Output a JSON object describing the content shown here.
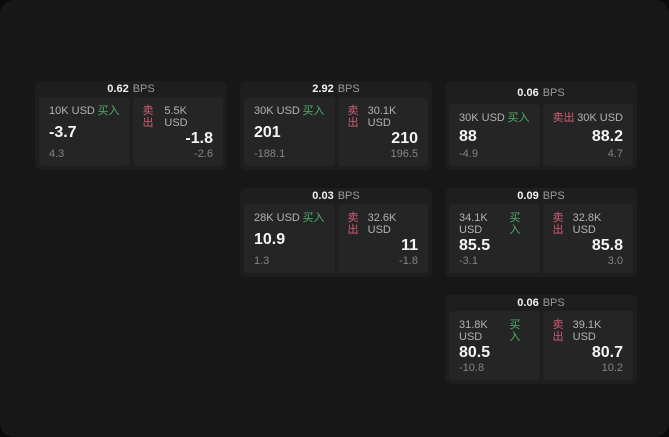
{
  "labels": {
    "bps": "BPS",
    "buy": "买入",
    "sell": "卖出"
  },
  "colors": {
    "buy-color": "#4db06a",
    "sell-color": "#cd5f73"
  },
  "cards": [
    {
      "bps": "0.62",
      "buy": {
        "amount": "10K USD",
        "value": "-3.7",
        "sub": "4.3"
      },
      "sell": {
        "amount": "5.5K USD",
        "value": "-1.8",
        "sub": "-2.6"
      }
    },
    {
      "bps": "2.92",
      "buy": {
        "amount": "30K USD",
        "value": "201",
        "sub": "-188.1"
      },
      "sell": {
        "amount": "30.1K USD",
        "value": "210",
        "sub": "196.5"
      }
    },
    {
      "bps": "0.06",
      "buy": {
        "amount": "30K USD",
        "value": "88",
        "sub": "-4.9"
      },
      "sell": {
        "amount": "30K USD",
        "value": "88.2",
        "sub": "4.7"
      }
    },
    {
      "bps": "0.03",
      "buy": {
        "amount": "28K USD",
        "value": "10.9",
        "sub": "1.3"
      },
      "sell": {
        "amount": "32.6K USD",
        "value": "11",
        "sub": "-1.8"
      }
    },
    {
      "bps": "0.09",
      "buy": {
        "amount": "34.1K USD",
        "value": "85.5",
        "sub": "-3.1"
      },
      "sell": {
        "amount": "32.8K USD",
        "value": "85.8",
        "sub": "3.0"
      }
    },
    {
      "bps": "0.06",
      "buy": {
        "amount": "31.8K USD",
        "value": "80.5",
        "sub": "-10.8"
      },
      "sell": {
        "amount": "39.1K USD",
        "value": "80.7",
        "sub": "10.2"
      }
    }
  ]
}
